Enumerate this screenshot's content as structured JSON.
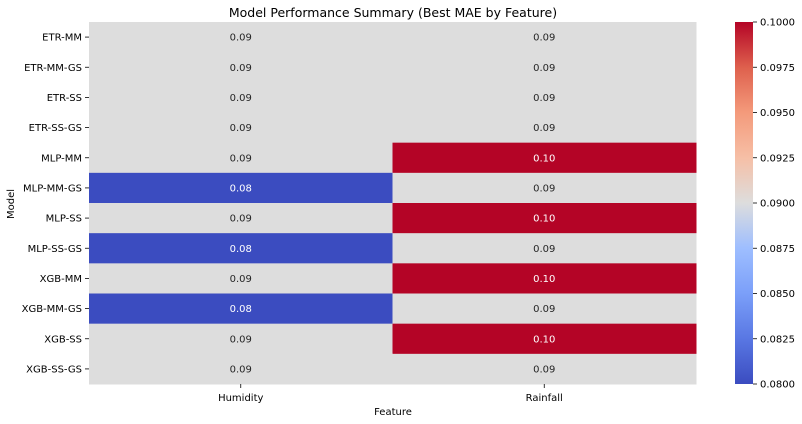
{
  "chart_data": {
    "type": "heatmap",
    "title": "Model Performance Summary (Best MAE by Feature)",
    "xlabel": "Feature",
    "ylabel": "Model",
    "columns": [
      "Humidity",
      "Rainfall"
    ],
    "rows": [
      "ETR-MM",
      "ETR-MM-GS",
      "ETR-SS",
      "ETR-SS-GS",
      "MLP-MM",
      "MLP-MM-GS",
      "MLP-SS",
      "MLP-SS-GS",
      "XGB-MM",
      "XGB-MM-GS",
      "XGB-SS",
      "XGB-SS-GS"
    ],
    "values": [
      [
        0.09,
        0.09
      ],
      [
        0.09,
        0.09
      ],
      [
        0.09,
        0.09
      ],
      [
        0.09,
        0.09
      ],
      [
        0.09,
        0.1
      ],
      [
        0.08,
        0.09
      ],
      [
        0.09,
        0.1
      ],
      [
        0.08,
        0.09
      ],
      [
        0.09,
        0.1
      ],
      [
        0.08,
        0.09
      ],
      [
        0.09,
        0.1
      ],
      [
        0.09,
        0.09
      ]
    ],
    "value_labels": [
      [
        "0.09",
        "0.09"
      ],
      [
        "0.09",
        "0.09"
      ],
      [
        "0.09",
        "0.09"
      ],
      [
        "0.09",
        "0.09"
      ],
      [
        "0.09",
        "0.10"
      ],
      [
        "0.08",
        "0.09"
      ],
      [
        "0.09",
        "0.10"
      ],
      [
        "0.08",
        "0.09"
      ],
      [
        "0.09",
        "0.10"
      ],
      [
        "0.08",
        "0.09"
      ],
      [
        "0.09",
        "0.10"
      ],
      [
        "0.09",
        "0.09"
      ]
    ],
    "colormap": "coolwarm",
    "vmin": 0.08,
    "vmax": 0.1,
    "colorbar_ticks": [
      "0.0800",
      "0.0825",
      "0.0850",
      "0.0875",
      "0.0900",
      "0.0925",
      "0.0950",
      "0.0975",
      "0.1000"
    ],
    "colorbar_tick_values": [
      0.08,
      0.0825,
      0.085,
      0.0875,
      0.09,
      0.0925,
      0.095,
      0.0975,
      0.1
    ],
    "colors": {
      "low": "#3b4cc0",
      "mid": "#dddddd",
      "high": "#b40426"
    }
  }
}
